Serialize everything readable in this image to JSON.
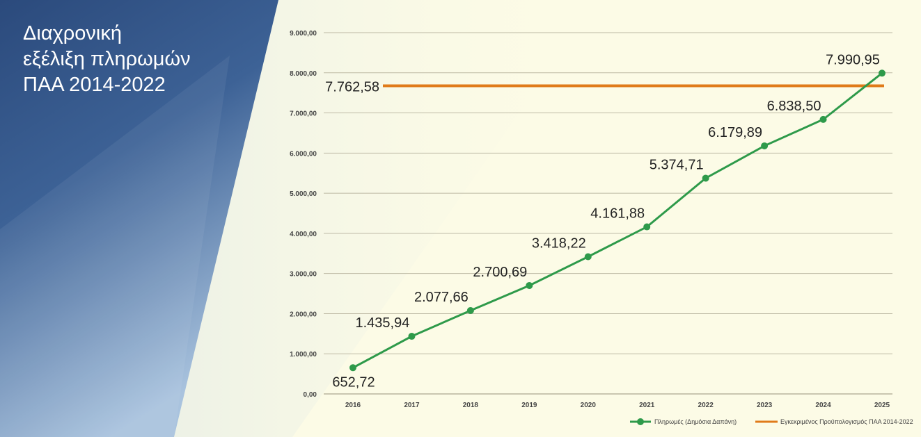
{
  "title_lines": [
    "Διαχρονική",
    "εξέλιξη πληρωμών",
    "ΠΑΑ 2014-2022"
  ],
  "colors": {
    "payments": "#2e9a4a",
    "budget": "#e07b1a",
    "panel": "#2d4f80",
    "background": "#fcfbe6"
  },
  "chart_data": {
    "type": "line",
    "x": [
      "2016",
      "2017",
      "2018",
      "2019",
      "2020",
      "2021",
      "2022",
      "2023",
      "2024",
      "2025"
    ],
    "series": [
      {
        "name": "Πληρωμές (Δημόσια Δαπάνη)",
        "values": [
          652.72,
          1435.94,
          2077.66,
          2700.69,
          3418.22,
          4161.88,
          5374.71,
          6179.89,
          6838.5,
          7990.95
        ],
        "labels": [
          "652,72",
          "1.435,94",
          "2.077,66",
          "2.700,69",
          "3.418,22",
          "4.161,88",
          "5.374,71",
          "6.179,89",
          "6.838,50",
          "7.990,95"
        ]
      },
      {
        "name": "Εγκεκριμένος Προϋπολογισμός ΠΑΑ 2014-2022",
        "value": 7762.58,
        "label": "7.762,58"
      }
    ],
    "yticks": [
      "0,00",
      "1.000,00",
      "2.000,00",
      "3.000,00",
      "4.000,00",
      "5.000,00",
      "6.000,00",
      "7.000,00",
      "8.000,00",
      "9.000,00"
    ],
    "ylim": [
      0,
      9000
    ],
    "grid": true,
    "legend": "bottom-right"
  }
}
